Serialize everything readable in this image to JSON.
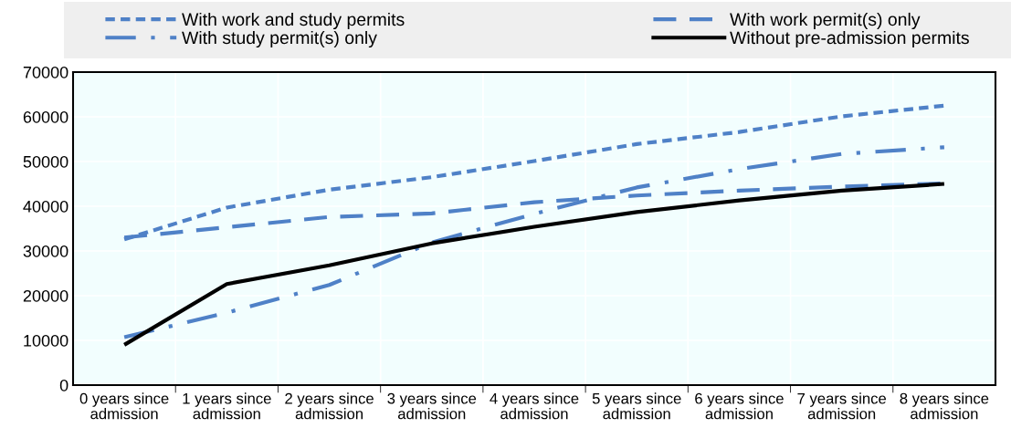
{
  "chart_data": {
    "type": "line",
    "categories": [
      "0 years since admission",
      "1 years since admission",
      "2 years since admission",
      "3 years since admission",
      "4 years since admission",
      "5 years since admission",
      "6 years since admission",
      "7 years since admission",
      "8 years since admission"
    ],
    "series": [
      {
        "name": "With work and study permits",
        "color": "#4f81c7",
        "line_style": "dotted",
        "values": [
          32600,
          39700,
          43700,
          46500,
          50100,
          53900,
          56600,
          60100,
          62500
        ]
      },
      {
        "name": "With work permit(s) only",
        "color": "#4f81c7",
        "line_style": "dashed",
        "values": [
          33000,
          35300,
          37600,
          38400,
          40900,
          42400,
          43500,
          44400,
          45100
        ]
      },
      {
        "name": "With study permit(s) only",
        "color": "#4f81c7",
        "line_style": "dashdot",
        "values": [
          10700,
          16200,
          22400,
          31900,
          38300,
          44200,
          48300,
          51700,
          53200
        ]
      },
      {
        "name": "Without pre-admission permits",
        "color": "#000000",
        "line_style": "solid",
        "values": [
          9000,
          22600,
          26800,
          31700,
          35400,
          38700,
          41300,
          43500,
          45000
        ]
      }
    ],
    "ylim": [
      0,
      70000
    ],
    "yticks": [
      0,
      10000,
      20000,
      30000,
      40000,
      50000,
      60000,
      70000
    ],
    "grid": true,
    "legend": "top",
    "marker": "none"
  }
}
